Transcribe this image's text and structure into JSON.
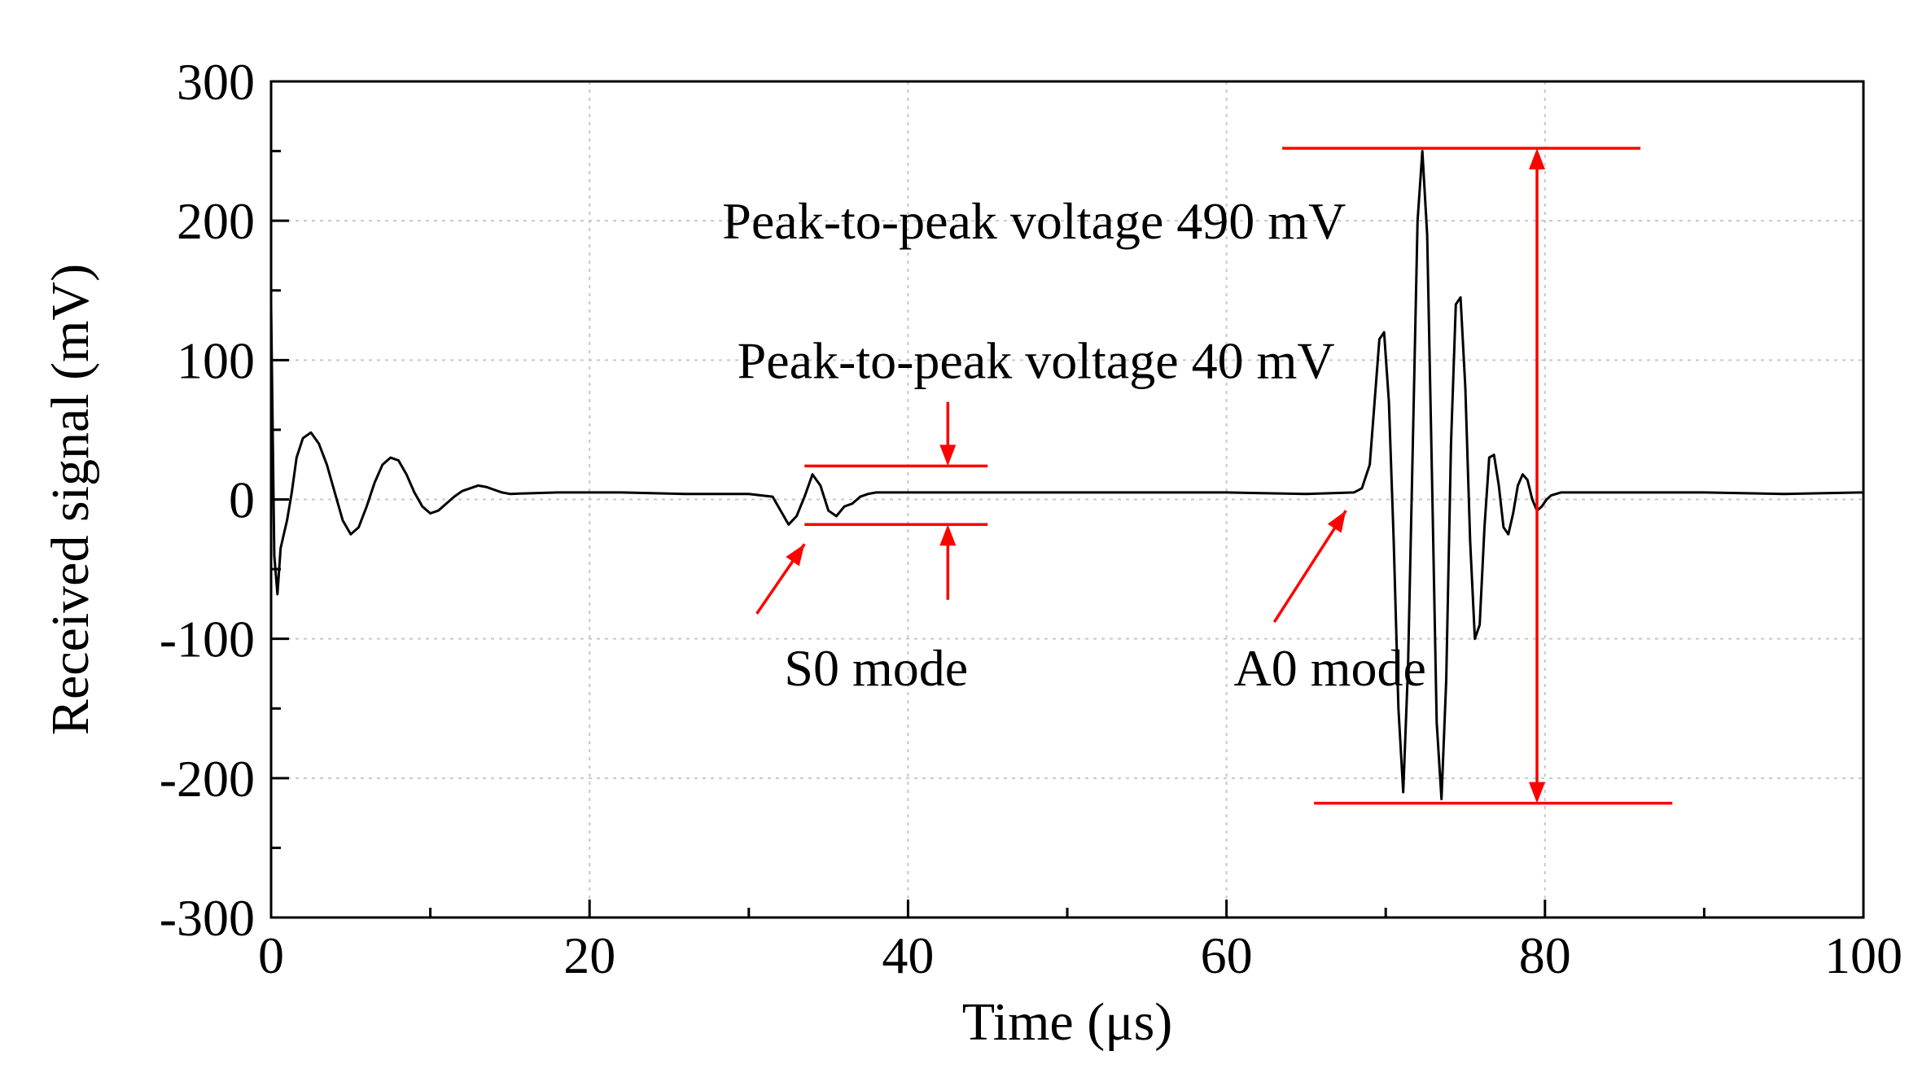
{
  "chart_data": {
    "type": "line",
    "xlabel": "Time (μs)",
    "ylabel": "Received signal (mV)",
    "xlim": [
      0,
      100
    ],
    "ylim": [
      -300,
      300
    ],
    "x_ticks": [
      "0",
      "20",
      "40",
      "60",
      "80",
      "100"
    ],
    "y_ticks": [
      "300",
      "200",
      "100",
      "0",
      "-100",
      "-200",
      "-300"
    ],
    "grid": true,
    "series": [
      {
        "color": "#000000",
        "x": [
          0,
          0.2,
          0.4,
          0.6,
          0.8,
          1.0,
          1.3,
          1.6,
          2.0,
          2.5,
          3.0,
          3.5,
          4.0,
          4.5,
          5.0,
          5.5,
          6.0,
          6.5,
          7.0,
          7.5,
          8.0,
          8.5,
          9.0,
          9.5,
          10.0,
          10.5,
          11.0,
          11.5,
          12.0,
          12.5,
          13.0,
          13.5,
          14.0,
          14.5,
          15.0,
          18,
          22,
          26,
          30,
          31.5,
          32.0,
          32.5,
          33.0,
          33.5,
          34.0,
          34.5,
          35.0,
          35.5,
          36.0,
          36.5,
          37.0,
          37.5,
          38.0,
          40,
          45,
          50,
          55,
          60,
          65,
          68,
          68.5,
          69.0,
          69.3,
          69.6,
          69.9,
          70.2,
          70.5,
          70.8,
          71.1,
          71.4,
          71.7,
          72.0,
          72.3,
          72.6,
          72.9,
          73.2,
          73.5,
          73.8,
          74.1,
          74.4,
          74.7,
          75.0,
          75.3,
          75.6,
          75.9,
          76.2,
          76.5,
          76.8,
          77.1,
          77.4,
          77.7,
          78.0,
          78.3,
          78.6,
          78.9,
          79.2,
          79.5,
          79.8,
          80.1,
          80.4,
          80.7,
          81.0,
          82,
          85,
          90,
          95,
          100
        ],
        "y": [
          140,
          -40,
          -68,
          -35,
          -25,
          -15,
          5,
          30,
          44,
          48,
          40,
          25,
          5,
          -15,
          -25,
          -20,
          -5,
          12,
          25,
          30,
          28,
          18,
          5,
          -5,
          -10,
          -8,
          -3,
          2,
          6,
          8,
          10,
          9,
          7,
          5,
          4,
          5,
          5,
          4,
          4,
          2,
          -8,
          -18,
          -12,
          2,
          18,
          10,
          -8,
          -12,
          -5,
          -3,
          2,
          4,
          5,
          5,
          5,
          5,
          5,
          5,
          4,
          5,
          8,
          25,
          70,
          115,
          120,
          70,
          -30,
          -150,
          -210,
          -120,
          40,
          200,
          250,
          190,
          20,
          -160,
          -215,
          -130,
          40,
          140,
          145,
          80,
          -30,
          -100,
          -90,
          -20,
          30,
          32,
          10,
          -20,
          -25,
          -10,
          10,
          18,
          14,
          0,
          -8,
          -5,
          0,
          3,
          4,
          5,
          5,
          5,
          5,
          4,
          5
        ]
      }
    ],
    "annotations": [
      {
        "text": "Peak-to-peak voltage 490 mV",
        "x": 67,
        "y": 210
      },
      {
        "text": "Peak-to-peak voltage 40 mV",
        "x": 67,
        "y": 100
      },
      {
        "text": "S0 mode",
        "x": 38,
        "y": -110
      },
      {
        "text": "A0 mode",
        "x": 67,
        "y": -110
      }
    ],
    "annotation_color": "#ff0000"
  }
}
